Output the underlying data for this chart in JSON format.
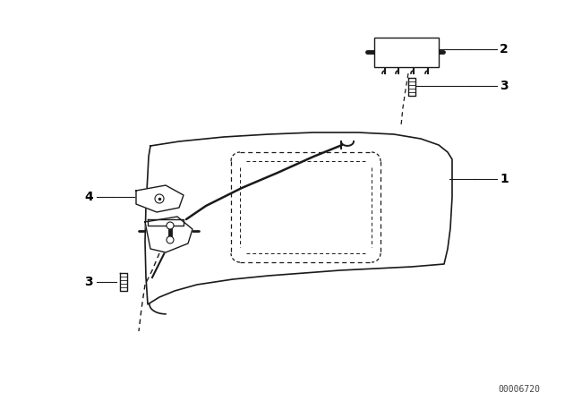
{
  "background_color": "#ffffff",
  "line_color": "#1a1a1a",
  "label_color": "#000000",
  "part_number": "00006720",
  "label_fontsize": 10,
  "label_fontweight": "bold",
  "pn_fontsize": 7
}
